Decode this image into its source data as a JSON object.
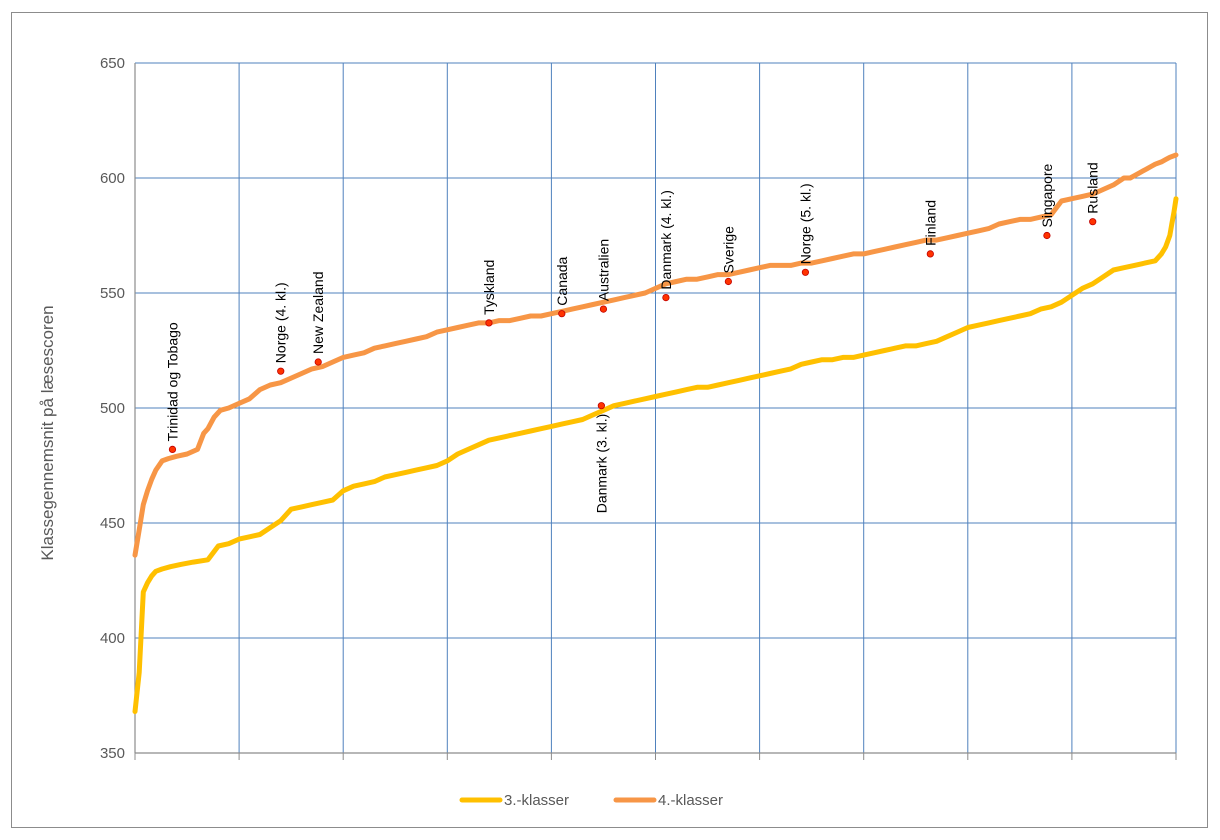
{
  "chart_data": {
    "type": "line",
    "title": "",
    "xlabel": "",
    "ylabel": "Klassegennemsnit på læsescoren",
    "ylim": [
      350,
      650
    ],
    "yticks": [
      350,
      400,
      450,
      500,
      550,
      600,
      650
    ],
    "x_range": [
      0,
      500
    ],
    "grid": true,
    "legend_position": "bottom",
    "colors": {
      "3.-klasser": "#ffc000",
      "4.-klasser": "#f79646",
      "grid": "#4f81bd",
      "marker": "#ff3300"
    },
    "series": [
      {
        "name": "3.-klasser",
        "x": [
          0,
          2,
          4,
          6,
          8,
          10,
          13,
          17,
          22,
          28,
          35,
          40,
          45,
          50,
          55,
          60,
          65,
          70,
          75,
          80,
          85,
          90,
          95,
          100,
          105,
          110,
          115,
          120,
          125,
          130,
          135,
          140,
          145,
          150,
          155,
          160,
          165,
          170,
          175,
          180,
          185,
          190,
          195,
          200,
          205,
          210,
          215,
          220,
          225,
          230,
          235,
          240,
          245,
          250,
          255,
          260,
          265,
          270,
          275,
          280,
          285,
          290,
          295,
          300,
          305,
          310,
          315,
          320,
          325,
          330,
          335,
          340,
          345,
          350,
          355,
          360,
          365,
          370,
          375,
          380,
          385,
          390,
          395,
          400,
          405,
          410,
          415,
          420,
          425,
          430,
          435,
          440,
          445,
          450,
          455,
          460,
          465,
          470,
          475,
          480,
          485,
          490,
          493,
          495,
          497,
          498,
          499,
          500
        ],
        "y": [
          368,
          385,
          420,
          424,
          427,
          429,
          430,
          431,
          432,
          433,
          434,
          440,
          441,
          443,
          444,
          445,
          448,
          451,
          456,
          457,
          458,
          459,
          460,
          464,
          466,
          467,
          468,
          470,
          471,
          472,
          473,
          474,
          475,
          477,
          480,
          482,
          484,
          486,
          487,
          488,
          489,
          490,
          491,
          492,
          493,
          494,
          495,
          497,
          499,
          501,
          502,
          503,
          504,
          505,
          506,
          507,
          508,
          509,
          509,
          510,
          511,
          512,
          513,
          514,
          515,
          516,
          517,
          519,
          520,
          521,
          521,
          522,
          522,
          523,
          524,
          525,
          526,
          527,
          527,
          528,
          529,
          531,
          533,
          535,
          536,
          537,
          538,
          539,
          540,
          541,
          543,
          544,
          546,
          549,
          552,
          554,
          557,
          560,
          561,
          562,
          563,
          564,
          567,
          570,
          575,
          580,
          585,
          591
        ]
      },
      {
        "name": "4.-klasser",
        "x": [
          0,
          2,
          4,
          6,
          8,
          10,
          13,
          16,
          20,
          25,
          30,
          33,
          35,
          38,
          41,
          45,
          50,
          55,
          60,
          65,
          70,
          75,
          80,
          85,
          90,
          95,
          100,
          105,
          110,
          115,
          120,
          125,
          130,
          135,
          140,
          145,
          150,
          155,
          160,
          165,
          170,
          175,
          180,
          185,
          190,
          195,
          200,
          205,
          210,
          215,
          220,
          225,
          230,
          235,
          240,
          245,
          250,
          255,
          260,
          265,
          270,
          275,
          280,
          285,
          290,
          295,
          300,
          305,
          310,
          315,
          320,
          325,
          330,
          335,
          340,
          345,
          350,
          355,
          360,
          365,
          370,
          375,
          380,
          385,
          390,
          395,
          400,
          405,
          410,
          415,
          420,
          425,
          430,
          435,
          440,
          445,
          450,
          455,
          460,
          465,
          470,
          475,
          478,
          480,
          482,
          484,
          486,
          488,
          490,
          493,
          495,
          497,
          500
        ],
        "y": [
          436,
          447,
          458,
          464,
          469,
          473,
          477,
          478,
          479,
          480,
          482,
          489,
          491,
          496,
          499,
          500,
          502,
          504,
          508,
          510,
          511,
          513,
          515,
          517,
          518,
          520,
          522,
          523,
          524,
          526,
          527,
          528,
          529,
          530,
          531,
          533,
          534,
          535,
          536,
          537,
          537,
          538,
          538,
          539,
          540,
          540,
          541,
          542,
          543,
          544,
          545,
          546,
          547,
          548,
          549,
          550,
          552,
          554,
          555,
          556,
          556,
          557,
          558,
          558,
          559,
          560,
          561,
          562,
          562,
          562,
          563,
          563,
          564,
          565,
          566,
          567,
          567,
          568,
          569,
          570,
          571,
          572,
          573,
          573,
          574,
          575,
          576,
          577,
          578,
          580,
          581,
          582,
          582,
          583,
          584,
          590,
          591,
          592,
          593,
          595,
          597,
          600,
          600,
          601,
          602,
          603,
          604,
          605,
          606,
          607,
          608,
          609,
          610
        ]
      }
    ],
    "annotations": [
      {
        "label": "Trinidad og Tobago",
        "series": "4.-klasser",
        "x": 18,
        "y": 482
      },
      {
        "label": "Norge (4. kl.)",
        "series": "4.-klasser",
        "x": 70,
        "y": 516
      },
      {
        "label": "New Zealand",
        "series": "4.-klasser",
        "x": 88,
        "y": 520
      },
      {
        "label": "Tyskland",
        "series": "4.-klasser",
        "x": 170,
        "y": 537
      },
      {
        "label": "Canada",
        "series": "4.-klasser",
        "x": 205,
        "y": 541
      },
      {
        "label": "Australien",
        "series": "4.-klasser",
        "x": 225,
        "y": 543
      },
      {
        "label": "Danmark (4. kl.)",
        "series": "4.-klasser",
        "x": 255,
        "y": 548
      },
      {
        "label": "Sverige",
        "series": "4.-klasser",
        "x": 285,
        "y": 555
      },
      {
        "label": "Norge (5. kl.)",
        "series": "4.-klasser",
        "x": 322,
        "y": 559
      },
      {
        "label": "Finland",
        "series": "4.-klasser",
        "x": 382,
        "y": 567
      },
      {
        "label": "Singapore",
        "series": "4.-klasser",
        "x": 438,
        "y": 575
      },
      {
        "label": "Rusland",
        "series": "4.-klasser",
        "x": 460,
        "y": 581
      },
      {
        "label": "Danmark (3. kl.)",
        "series": "3.-klasser",
        "x": 224,
        "y": 501
      }
    ]
  }
}
